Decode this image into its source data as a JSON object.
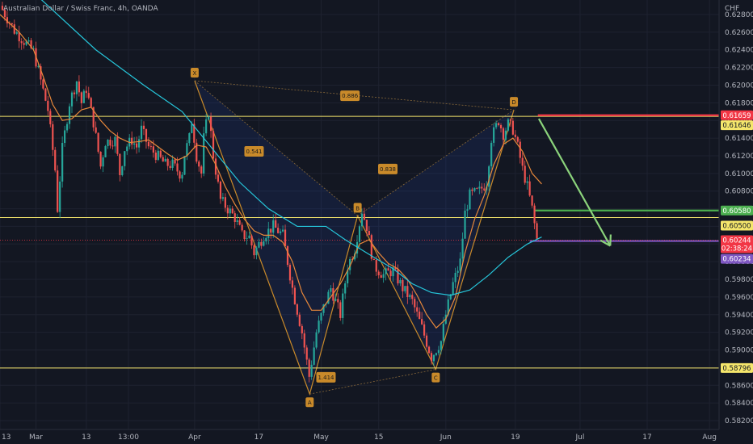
{
  "chart_data": {
    "type": "candlestick",
    "title": "Australian Dollar / Swiss Franc, 4h, OANDA",
    "currency": "CHF",
    "ylim": [
      0.5816,
      0.6298
    ],
    "y_ticks": [
      "0.62800",
      "0.62600",
      "0.62400",
      "0.62200",
      "0.62000",
      "0.61800",
      "0.61600",
      "0.61400",
      "0.61200",
      "0.61000",
      "0.60800",
      "0.60600",
      "0.60400",
      "0.60200",
      "0.60000",
      "0.59800",
      "0.59600",
      "0.59400",
      "0.59200",
      "0.59000",
      "0.58800",
      "0.58600",
      "0.58400",
      "0.58200"
    ],
    "x_ticks": [
      "13",
      "Mar",
      "13",
      "13:00",
      "Apr",
      "17",
      "May",
      "15",
      "Jun",
      "19",
      "Jul",
      "17",
      "Aug"
    ],
    "x_tick_pos": [
      0,
      7.5,
      18,
      26.8,
      40.6,
      54,
      67,
      79,
      93,
      107.5,
      121,
      135,
      148
    ],
    "price_path": [
      [
        0,
        0.629
      ],
      [
        3,
        0.6262
      ],
      [
        7,
        0.6238
      ],
      [
        10,
        0.6172
      ],
      [
        11.5,
        0.6104
      ],
      [
        12,
        0.606
      ],
      [
        13,
        0.6128
      ],
      [
        14.5,
        0.618
      ],
      [
        16,
        0.6205
      ],
      [
        17,
        0.618
      ],
      [
        18,
        0.6196
      ],
      [
        19.5,
        0.6158
      ],
      [
        21,
        0.6108
      ],
      [
        22,
        0.6136
      ],
      [
        24,
        0.6138
      ],
      [
        25,
        0.61
      ],
      [
        26,
        0.6128
      ],
      [
        27.5,
        0.6138
      ],
      [
        28.5,
        0.613
      ],
      [
        29.5,
        0.615
      ],
      [
        31,
        0.613
      ],
      [
        33.5,
        0.6116
      ],
      [
        34.5,
        0.611
      ],
      [
        36,
        0.611
      ],
      [
        37.5,
        0.61
      ],
      [
        38,
        0.6102
      ],
      [
        38.5,
        0.6122
      ],
      [
        39.5,
        0.614
      ],
      [
        40,
        0.616
      ],
      [
        41,
        0.612
      ],
      [
        42,
        0.61
      ],
      [
        42.5,
        0.614
      ],
      [
        43.5,
        0.617
      ],
      [
        44.5,
        0.612
      ],
      [
        46,
        0.607
      ],
      [
        47.5,
        0.606
      ],
      [
        49,
        0.605
      ],
      [
        50.5,
        0.603
      ],
      [
        52,
        0.6028
      ],
      [
        53,
        0.601
      ],
      [
        55,
        0.603
      ],
      [
        57,
        0.604
      ],
      [
        59,
        0.603
      ],
      [
        61,
        0.597
      ],
      [
        63,
        0.592
      ],
      [
        64.5,
        0.587
      ],
      [
        66,
        0.592
      ],
      [
        67.5,
        0.5948
      ],
      [
        69,
        0.597
      ],
      [
        71,
        0.594
      ],
      [
        72.5,
        0.5995
      ],
      [
        74,
        0.6015
      ],
      [
        75.5,
        0.6058
      ],
      [
        76.5,
        0.604
      ],
      [
        78,
        0.5995
      ],
      [
        80,
        0.5985
      ],
      [
        82,
        0.599
      ],
      [
        84,
        0.597
      ],
      [
        86,
        0.5955
      ],
      [
        88,
        0.5925
      ],
      [
        90,
        0.5892
      ],
      [
        92,
        0.591
      ],
      [
        93,
        0.594
      ],
      [
        94.5,
        0.5975
      ],
      [
        96,
        0.6
      ],
      [
        97,
        0.6055
      ],
      [
        98,
        0.6075
      ],
      [
        100,
        0.608
      ],
      [
        101.5,
        0.609
      ],
      [
        102.5,
        0.614
      ],
      [
        104,
        0.616
      ],
      [
        105,
        0.6145
      ],
      [
        106,
        0.6156
      ],
      [
        107,
        0.615
      ],
      [
        108,
        0.613
      ],
      [
        109,
        0.6105
      ],
      [
        110,
        0.6085
      ],
      [
        111,
        0.606
      ],
      [
        112,
        0.6025
      ]
    ],
    "ema_fast": [
      [
        0,
        0.628
      ],
      [
        4,
        0.626
      ],
      [
        7,
        0.624
      ],
      [
        9,
        0.621
      ],
      [
        11,
        0.6178
      ],
      [
        13,
        0.616
      ],
      [
        15,
        0.6162
      ],
      [
        17,
        0.6172
      ],
      [
        19,
        0.6175
      ],
      [
        21,
        0.616
      ],
      [
        23,
        0.6148
      ],
      [
        25,
        0.614
      ],
      [
        27,
        0.6135
      ],
      [
        29,
        0.6136
      ],
      [
        31,
        0.6138
      ],
      [
        33,
        0.613
      ],
      [
        35,
        0.6122
      ],
      [
        37,
        0.6115
      ],
      [
        39,
        0.612
      ],
      [
        41,
        0.6132
      ],
      [
        43,
        0.613
      ],
      [
        45,
        0.611
      ],
      [
        47,
        0.6085
      ],
      [
        49,
        0.6065
      ],
      [
        51,
        0.6048
      ],
      [
        53,
        0.6035
      ],
      [
        55,
        0.603
      ],
      [
        57,
        0.603
      ],
      [
        59,
        0.6022
      ],
      [
        61,
        0.6
      ],
      [
        63,
        0.5965
      ],
      [
        65,
        0.5945
      ],
      [
        67,
        0.5945
      ],
      [
        69,
        0.596
      ],
      [
        71,
        0.5975
      ],
      [
        73,
        0.5995
      ],
      [
        75,
        0.602
      ],
      [
        77,
        0.6025
      ],
      [
        79,
        0.601
      ],
      [
        81,
        0.5998
      ],
      [
        83,
        0.5992
      ],
      [
        85,
        0.598
      ],
      [
        87,
        0.5962
      ],
      [
        89,
        0.594
      ],
      [
        91,
        0.5925
      ],
      [
        93,
        0.5935
      ],
      [
        95,
        0.596
      ],
      [
        97,
        0.601
      ],
      [
        99,
        0.6048
      ],
      [
        101,
        0.6075
      ],
      [
        103,
        0.611
      ],
      [
        105,
        0.6133
      ],
      [
        107,
        0.614
      ],
      [
        109,
        0.6125
      ],
      [
        111,
        0.61
      ],
      [
        113,
        0.6088
      ]
    ],
    "ema_slow": [
      [
        0,
        0.634
      ],
      [
        10,
        0.629
      ],
      [
        20,
        0.624
      ],
      [
        30,
        0.62
      ],
      [
        38,
        0.617
      ],
      [
        44,
        0.613
      ],
      [
        50,
        0.609
      ],
      [
        56,
        0.606
      ],
      [
        62,
        0.604
      ],
      [
        68,
        0.604
      ],
      [
        72,
        0.6025
      ],
      [
        78,
        0.6005
      ],
      [
        82,
        0.5992
      ],
      [
        86,
        0.5975
      ],
      [
        90,
        0.5965
      ],
      [
        94,
        0.5962
      ],
      [
        98,
        0.5968
      ],
      [
        102,
        0.5985
      ],
      [
        106,
        0.6005
      ],
      [
        110,
        0.602
      ],
      [
        113,
        0.6028
      ]
    ],
    "pattern_points": [
      {
        "label": "X",
        "x": 40.6,
        "y": 0.6205
      },
      {
        "label": "A",
        "x": 64.6,
        "y": 0.585
      },
      {
        "label": "B",
        "x": 74.6,
        "y": 0.6052
      },
      {
        "label": "C",
        "x": 90.9,
        "y": 0.5878
      },
      {
        "label": "D",
        "x": 107.2,
        "y": 0.6172
      }
    ],
    "pattern_ratios": [
      {
        "label": "0.886",
        "x": 73.0,
        "y": 0.6188
      },
      {
        "label": "0.541",
        "x": 53.0,
        "y": 0.6125
      },
      {
        "label": "0.838",
        "x": 80.9,
        "y": 0.6105
      },
      {
        "label": "1.414",
        "x": 68.0,
        "y": 0.5869
      }
    ],
    "horizontal_lines": [
      {
        "y": 0.61646,
        "color": "#f5e66b"
      },
      {
        "y": 0.605,
        "color": "#f5e66b"
      },
      {
        "y": 0.58796,
        "color": "#f5e66b"
      },
      {
        "y": 0.61659,
        "color": "#f23645",
        "x_start": 112.2
      },
      {
        "y": 0.6058,
        "color": "#4caf50",
        "x_start": 111.5
      },
      {
        "y": 0.60234,
        "color": "#7e57c2",
        "x_start": 110.5
      }
    ],
    "current_price_line": {
      "y": 0.60244,
      "color": "#f23645"
    },
    "projection_arrow": {
      "x1": 112.4,
      "y1": 0.6162,
      "x2": 127.3,
      "y2": 0.6018,
      "color": "#8bd37b"
    },
    "price_labels": [
      {
        "text": "0.61659",
        "y": 0.61659,
        "bg": "#f23645",
        "fg": "#ffffff"
      },
      {
        "text": "0.61646",
        "y": 0.61646,
        "bg": "#f5e66b",
        "fg": "#131722",
        "offset": 11
      },
      {
        "text": "0.60580",
        "y": 0.6058,
        "bg": "#4caf50",
        "fg": "#ffffff"
      },
      {
        "text": "0.60500",
        "y": 0.605,
        "bg": "#f5e66b",
        "fg": "#131722",
        "offset": 10
      },
      {
        "text": "0.60244",
        "sub": "02:38:24",
        "y": 0.60244,
        "bg": "#f23645",
        "fg": "#ffffff"
      },
      {
        "text": "0.60234",
        "y": 0.60234,
        "bg": "#7e57c2",
        "fg": "#ffffff",
        "offset": 22
      },
      {
        "text": "0.58796",
        "y": 0.58796,
        "bg": "#f5e66b",
        "fg": "#131722"
      }
    ]
  }
}
